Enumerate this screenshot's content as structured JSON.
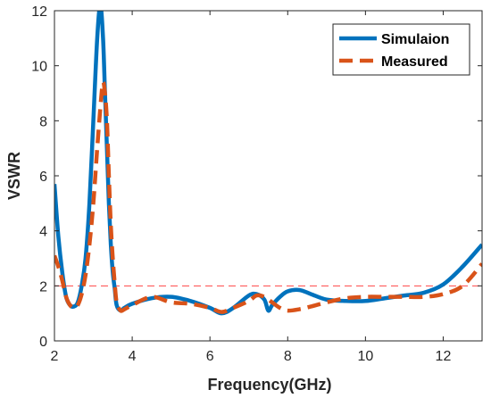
{
  "chart_data": {
    "type": "line",
    "xlabel": "Frequency(GHz)",
    "ylabel": "VSWR",
    "xlim": [
      2,
      13
    ],
    "ylim": [
      0,
      12
    ],
    "xticks": [
      2,
      4,
      6,
      8,
      10,
      12
    ],
    "yticks": [
      0,
      2,
      4,
      6,
      8,
      10,
      12
    ],
    "grid": false,
    "legend_position": "top-right",
    "reference_line": {
      "y": 2,
      "color": "#ff4444",
      "style": "dashed"
    },
    "series": [
      {
        "name": "Simulaion",
        "color": "#0072BD",
        "style": "solid",
        "x": [
          2.0,
          2.1,
          2.2,
          2.3,
          2.4,
          2.5,
          2.6,
          2.7,
          2.8,
          2.9,
          3.0,
          3.1,
          3.18,
          3.25,
          3.3,
          3.35,
          3.4,
          3.45,
          3.5,
          3.55,
          3.6,
          3.7,
          3.8,
          4.0,
          4.5,
          5.0,
          5.5,
          6.0,
          6.3,
          6.6,
          7.0,
          7.2,
          7.4,
          7.5,
          7.6,
          7.8,
          8.0,
          8.3,
          8.6,
          9.0,
          9.5,
          10.0,
          10.5,
          11.0,
          11.5,
          12.0,
          12.5,
          13.0
        ],
        "y": [
          5.7,
          3.8,
          2.5,
          1.6,
          1.3,
          1.25,
          1.4,
          2.0,
          3.0,
          5.0,
          8.0,
          11.0,
          12.2,
          11.0,
          9.0,
          7.0,
          5.0,
          3.5,
          2.5,
          1.9,
          1.3,
          1.1,
          1.2,
          1.35,
          1.55,
          1.6,
          1.45,
          1.2,
          1.0,
          1.2,
          1.65,
          1.7,
          1.5,
          1.1,
          1.3,
          1.6,
          1.8,
          1.85,
          1.7,
          1.5,
          1.45,
          1.45,
          1.55,
          1.65,
          1.75,
          2.05,
          2.7,
          3.5
        ]
      },
      {
        "name": "Measured",
        "color": "#D95319",
        "style": "dashed",
        "x": [
          2.0,
          2.1,
          2.2,
          2.3,
          2.4,
          2.5,
          2.6,
          2.7,
          2.8,
          2.9,
          3.0,
          3.1,
          3.2,
          3.25,
          3.3,
          3.35,
          3.4,
          3.45,
          3.5,
          3.55,
          3.6,
          3.7,
          3.8,
          4.0,
          4.5,
          5.0,
          5.5,
          6.0,
          6.3,
          6.6,
          7.0,
          7.2,
          7.4,
          7.6,
          7.8,
          8.0,
          8.3,
          8.6,
          9.0,
          9.5,
          10.0,
          10.5,
          11.0,
          11.5,
          12.0,
          12.5,
          13.0
        ],
        "y": [
          3.1,
          2.7,
          2.2,
          1.6,
          1.3,
          1.2,
          1.3,
          1.7,
          2.4,
          3.5,
          5.0,
          7.0,
          8.8,
          9.4,
          9.0,
          8.0,
          6.0,
          4.2,
          3.0,
          2.1,
          1.4,
          1.1,
          1.15,
          1.3,
          1.6,
          1.4,
          1.35,
          1.2,
          1.05,
          1.2,
          1.45,
          1.65,
          1.6,
          1.4,
          1.2,
          1.1,
          1.15,
          1.25,
          1.4,
          1.55,
          1.6,
          1.6,
          1.6,
          1.6,
          1.7,
          2.0,
          2.8
        ]
      }
    ]
  }
}
